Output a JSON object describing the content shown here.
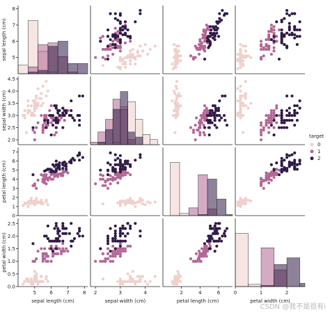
{
  "chart_data": {
    "type": "pairplot",
    "variables": [
      "sepal length (cm)",
      "sepal width (cm)",
      "petal length (cm)",
      "petal width (cm)"
    ],
    "ranges": [
      [
        4.0,
        8.2
      ],
      [
        1.8,
        4.6
      ],
      [
        0.0,
        7.5
      ],
      [
        0.0,
        2.7
      ]
    ],
    "ticks": [
      [
        5,
        6,
        7,
        8
      ],
      [
        2.0,
        2.5,
        3.0,
        3.5,
        4.0,
        4.5
      ],
      [
        0,
        1,
        2,
        3,
        4,
        5,
        6,
        7
      ],
      [
        0.0,
        0.5,
        1.0,
        1.5,
        2.0,
        2.5
      ]
    ],
    "x_ticks": [
      [
        5,
        6,
        7,
        8
      ],
      [
        2,
        3,
        4
      ],
      [
        2,
        4,
        6
      ],
      [
        0,
        1,
        2
      ]
    ],
    "ylabels_left": [
      "sepal length (cm)",
      "sepal width (cm)",
      "petal length (cm)",
      "petal width (cm)"
    ],
    "legend": {
      "title": "target",
      "placement": "right",
      "entries": [
        "0",
        "1",
        "2"
      ]
    },
    "series_colors": [
      "#efd0cb",
      "#b36694",
      "#2f1b46"
    ],
    "series": [
      {
        "name": "0",
        "rows": [
          [
            5.1,
            3.5,
            1.4,
            0.2
          ],
          [
            4.9,
            3.0,
            1.4,
            0.2
          ],
          [
            4.7,
            3.2,
            1.3,
            0.2
          ],
          [
            4.6,
            3.1,
            1.5,
            0.2
          ],
          [
            5.0,
            3.6,
            1.4,
            0.2
          ],
          [
            5.4,
            3.9,
            1.7,
            0.4
          ],
          [
            4.6,
            3.4,
            1.4,
            0.3
          ],
          [
            5.0,
            3.4,
            1.5,
            0.2
          ],
          [
            4.4,
            2.9,
            1.4,
            0.2
          ],
          [
            4.9,
            3.1,
            1.5,
            0.1
          ],
          [
            5.4,
            3.7,
            1.5,
            0.2
          ],
          [
            4.8,
            3.4,
            1.6,
            0.2
          ],
          [
            4.8,
            3.0,
            1.4,
            0.1
          ],
          [
            4.3,
            3.0,
            1.1,
            0.1
          ],
          [
            5.8,
            4.0,
            1.2,
            0.2
          ],
          [
            5.7,
            4.4,
            1.5,
            0.4
          ],
          [
            5.4,
            3.9,
            1.3,
            0.4
          ],
          [
            5.1,
            3.5,
            1.4,
            0.3
          ],
          [
            5.7,
            3.8,
            1.7,
            0.3
          ],
          [
            5.1,
            3.8,
            1.5,
            0.3
          ],
          [
            5.4,
            3.4,
            1.7,
            0.2
          ],
          [
            5.1,
            3.7,
            1.5,
            0.4
          ],
          [
            4.6,
            3.6,
            1.0,
            0.2
          ],
          [
            5.1,
            3.3,
            1.7,
            0.5
          ],
          [
            4.8,
            3.4,
            1.9,
            0.2
          ],
          [
            5.0,
            3.0,
            1.6,
            0.2
          ],
          [
            5.0,
            3.4,
            1.6,
            0.4
          ],
          [
            5.2,
            3.5,
            1.5,
            0.2
          ],
          [
            5.2,
            3.4,
            1.4,
            0.2
          ],
          [
            4.7,
            3.2,
            1.6,
            0.2
          ],
          [
            4.8,
            3.1,
            1.6,
            0.2
          ],
          [
            5.4,
            3.4,
            1.5,
            0.4
          ],
          [
            5.2,
            4.1,
            1.5,
            0.1
          ],
          [
            5.5,
            4.2,
            1.4,
            0.2
          ],
          [
            4.9,
            3.1,
            1.5,
            0.2
          ],
          [
            5.0,
            3.2,
            1.2,
            0.2
          ],
          [
            5.5,
            3.5,
            1.3,
            0.2
          ],
          [
            4.9,
            3.6,
            1.4,
            0.1
          ],
          [
            4.4,
            3.0,
            1.3,
            0.2
          ],
          [
            5.1,
            3.4,
            1.5,
            0.2
          ],
          [
            5.0,
            3.5,
            1.3,
            0.3
          ],
          [
            4.5,
            2.3,
            1.3,
            0.3
          ],
          [
            4.4,
            3.2,
            1.3,
            0.2
          ],
          [
            5.0,
            3.5,
            1.6,
            0.6
          ],
          [
            5.1,
            3.8,
            1.9,
            0.4
          ],
          [
            4.8,
            3.0,
            1.4,
            0.3
          ],
          [
            5.1,
            3.8,
            1.6,
            0.2
          ],
          [
            4.6,
            3.2,
            1.4,
            0.2
          ],
          [
            5.3,
            3.7,
            1.5,
            0.2
          ],
          [
            5.0,
            3.3,
            1.4,
            0.2
          ]
        ]
      },
      {
        "name": "1",
        "rows": [
          [
            7.0,
            3.2,
            4.7,
            1.4
          ],
          [
            6.4,
            3.2,
            4.5,
            1.5
          ],
          [
            6.9,
            3.1,
            4.9,
            1.5
          ],
          [
            5.5,
            2.3,
            4.0,
            1.3
          ],
          [
            6.5,
            2.8,
            4.6,
            1.5
          ],
          [
            5.7,
            2.8,
            4.5,
            1.3
          ],
          [
            6.3,
            3.3,
            4.7,
            1.6
          ],
          [
            4.9,
            2.4,
            3.3,
            1.0
          ],
          [
            6.6,
            2.9,
            4.6,
            1.3
          ],
          [
            5.2,
            2.7,
            3.9,
            1.4
          ],
          [
            5.0,
            2.0,
            3.5,
            1.0
          ],
          [
            5.9,
            3.0,
            4.2,
            1.5
          ],
          [
            6.0,
            2.2,
            4.0,
            1.0
          ],
          [
            6.1,
            2.9,
            4.7,
            1.4
          ],
          [
            5.6,
            2.9,
            3.6,
            1.3
          ],
          [
            6.7,
            3.1,
            4.4,
            1.4
          ],
          [
            5.6,
            3.0,
            4.5,
            1.5
          ],
          [
            5.8,
            2.7,
            4.1,
            1.0
          ],
          [
            6.2,
            2.2,
            4.5,
            1.5
          ],
          [
            5.6,
            2.5,
            3.9,
            1.1
          ],
          [
            5.9,
            3.2,
            4.8,
            1.8
          ],
          [
            6.1,
            2.8,
            4.0,
            1.3
          ],
          [
            6.3,
            2.5,
            4.9,
            1.5
          ],
          [
            6.1,
            2.8,
            4.7,
            1.2
          ],
          [
            6.4,
            2.9,
            4.3,
            1.3
          ],
          [
            6.6,
            3.0,
            4.4,
            1.4
          ],
          [
            6.8,
            2.8,
            4.8,
            1.4
          ],
          [
            6.7,
            3.0,
            5.0,
            1.7
          ],
          [
            6.0,
            2.9,
            4.5,
            1.5
          ],
          [
            5.7,
            2.6,
            3.5,
            1.0
          ],
          [
            5.5,
            2.4,
            3.8,
            1.1
          ],
          [
            5.5,
            2.4,
            3.7,
            1.0
          ],
          [
            5.8,
            2.7,
            3.9,
            1.2
          ],
          [
            6.0,
            2.7,
            5.1,
            1.6
          ],
          [
            5.4,
            3.0,
            4.5,
            1.5
          ],
          [
            6.0,
            3.4,
            4.5,
            1.6
          ],
          [
            6.7,
            3.1,
            4.7,
            1.5
          ],
          [
            6.3,
            2.3,
            4.4,
            1.3
          ],
          [
            5.6,
            3.0,
            4.1,
            1.3
          ],
          [
            5.5,
            2.5,
            4.0,
            1.3
          ],
          [
            5.5,
            2.6,
            4.4,
            1.2
          ],
          [
            6.1,
            3.0,
            4.6,
            1.4
          ],
          [
            5.8,
            2.6,
            4.0,
            1.2
          ],
          [
            5.0,
            2.3,
            3.3,
            1.0
          ],
          [
            5.6,
            2.7,
            4.2,
            1.3
          ],
          [
            5.7,
            3.0,
            4.2,
            1.2
          ],
          [
            5.7,
            2.9,
            4.2,
            1.3
          ],
          [
            6.2,
            2.9,
            4.3,
            1.3
          ],
          [
            5.1,
            2.5,
            3.0,
            1.1
          ],
          [
            5.7,
            2.8,
            4.1,
            1.3
          ]
        ]
      },
      {
        "name": "2",
        "rows": [
          [
            6.3,
            3.3,
            6.0,
            2.5
          ],
          [
            5.8,
            2.7,
            5.1,
            1.9
          ],
          [
            7.1,
            3.0,
            5.9,
            2.1
          ],
          [
            6.3,
            2.9,
            5.6,
            1.8
          ],
          [
            6.5,
            3.0,
            5.8,
            2.2
          ],
          [
            7.6,
            3.0,
            6.6,
            2.1
          ],
          [
            4.9,
            2.5,
            4.5,
            1.7
          ],
          [
            7.3,
            2.9,
            6.3,
            1.8
          ],
          [
            6.7,
            2.5,
            5.8,
            1.8
          ],
          [
            7.2,
            3.6,
            6.1,
            2.5
          ],
          [
            6.5,
            3.2,
            5.1,
            2.0
          ],
          [
            6.4,
            2.7,
            5.3,
            1.9
          ],
          [
            6.8,
            3.0,
            5.5,
            2.1
          ],
          [
            5.7,
            2.5,
            5.0,
            2.0
          ],
          [
            5.8,
            2.8,
            5.1,
            2.4
          ],
          [
            6.4,
            3.2,
            5.3,
            2.3
          ],
          [
            6.5,
            3.0,
            5.5,
            1.8
          ],
          [
            7.7,
            3.8,
            6.7,
            2.2
          ],
          [
            7.7,
            2.6,
            6.9,
            2.3
          ],
          [
            6.0,
            2.2,
            5.0,
            1.5
          ],
          [
            6.9,
            3.2,
            5.7,
            2.3
          ],
          [
            5.6,
            2.8,
            4.9,
            2.0
          ],
          [
            7.7,
            2.8,
            6.7,
            2.0
          ],
          [
            6.3,
            2.7,
            4.9,
            1.8
          ],
          [
            6.7,
            3.3,
            5.7,
            2.1
          ],
          [
            7.2,
            3.2,
            6.0,
            1.8
          ],
          [
            6.2,
            2.8,
            4.8,
            1.8
          ],
          [
            6.1,
            3.0,
            4.9,
            1.8
          ],
          [
            6.4,
            2.8,
            5.6,
            2.1
          ],
          [
            7.2,
            3.0,
            5.8,
            1.6
          ],
          [
            7.4,
            2.8,
            6.1,
            1.9
          ],
          [
            7.9,
            3.8,
            6.4,
            2.0
          ],
          [
            6.4,
            2.8,
            5.6,
            2.2
          ],
          [
            6.3,
            2.8,
            5.1,
            1.5
          ],
          [
            6.1,
            2.6,
            5.6,
            1.4
          ],
          [
            7.7,
            3.0,
            6.1,
            2.3
          ],
          [
            6.3,
            3.4,
            5.6,
            2.4
          ],
          [
            6.4,
            3.1,
            5.5,
            1.8
          ],
          [
            6.0,
            3.0,
            4.8,
            1.8
          ],
          [
            6.9,
            3.1,
            5.4,
            2.1
          ],
          [
            6.7,
            3.1,
            5.6,
            2.4
          ],
          [
            6.9,
            3.1,
            5.1,
            2.3
          ],
          [
            5.8,
            2.7,
            5.1,
            1.9
          ],
          [
            6.8,
            3.2,
            5.9,
            2.3
          ],
          [
            6.7,
            3.3,
            5.7,
            2.5
          ],
          [
            6.7,
            3.0,
            5.2,
            2.3
          ],
          [
            6.3,
            2.5,
            5.0,
            1.9
          ],
          [
            6.5,
            3.0,
            5.2,
            2.0
          ],
          [
            6.2,
            3.4,
            5.4,
            2.3
          ],
          [
            5.9,
            3.0,
            5.1,
            1.8
          ]
        ]
      }
    ],
    "diagonal": {
      "type": "histogram",
      "bin_edges": [
        [
          4.0,
          4.6,
          5.2,
          5.8,
          6.4,
          7.0,
          7.6,
          8.2
        ],
        [
          1.8,
          2.1,
          2.4,
          2.7,
          3.0,
          3.3,
          3.6,
          3.9,
          4.2,
          4.5
        ],
        [
          0.8,
          1.8,
          2.8,
          3.8,
          4.8,
          5.8,
          6.8,
          7.5
        ],
        [
          0.0,
          0.5,
          1.0,
          1.5,
          2.0,
          2.5,
          2.7
        ]
      ]
    },
    "watermark": "CSDN @我不是很有i"
  }
}
